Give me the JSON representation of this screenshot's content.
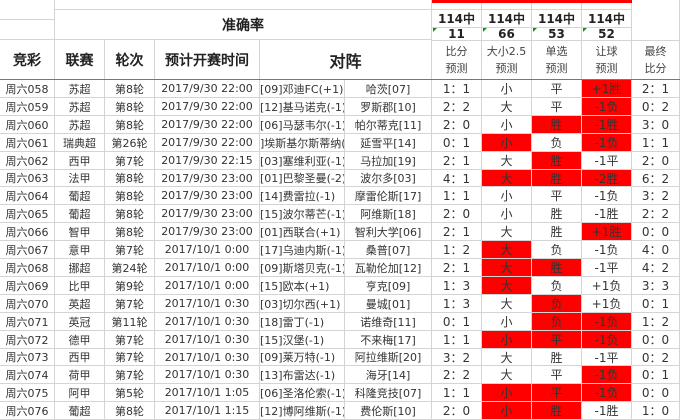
{
  "header": {
    "accuracy_title": "准确率",
    "columns": [
      "竞彩",
      "联赛",
      "轮次",
      "预计开赛时间",
      "对阵"
    ],
    "stats": [
      {
        "top": "114中",
        "value": "11",
        "label1": "比分",
        "label2": "预测"
      },
      {
        "top": "114中",
        "value": "66",
        "label1": "大小2.5",
        "label2": "预测"
      },
      {
        "top": "114中",
        "value": "53",
        "label1": "单选",
        "label2": "预测"
      },
      {
        "top": "114中",
        "value": "52",
        "label1": "让球",
        "label2": "预测"
      }
    ],
    "final_label1": "最终",
    "final_label2": "比分"
  },
  "colors": {
    "hit": "#ff0000",
    "marker": "#1a8a1a"
  },
  "rows": [
    {
      "id": "周六058",
      "league": "苏超",
      "round": "第8轮",
      "time": "2017/9/30 22:00",
      "home": "[09]邓迪FC(+1)",
      "away": "哈茨[07]",
      "score": "1：1",
      "size": "小",
      "pick": "平",
      "hcp": "+1胜",
      "final": "2：1",
      "hit": [
        0,
        0,
        0,
        1
      ]
    },
    {
      "id": "周六059",
      "league": "苏超",
      "round": "第8轮",
      "time": "2017/9/30 22:00",
      "home": "[12]基马诺克(-1)",
      "away": "罗斯郡[10]",
      "score": "2：2",
      "size": "大",
      "pick": "平",
      "hcp": "-1负",
      "final": "0：2",
      "hit": [
        0,
        0,
        0,
        1
      ]
    },
    {
      "id": "周六060",
      "league": "苏超",
      "round": "第8轮",
      "time": "2017/9/30 22:00",
      "home": "[06]马瑟韦尔(-1)",
      "away": "帕尔蒂克[11]",
      "score": "2：0",
      "size": "小",
      "pick": "胜",
      "hcp": "-1胜",
      "final": "3：0",
      "hit": [
        0,
        0,
        1,
        1
      ]
    },
    {
      "id": "周六061",
      "league": "瑞典超",
      "round": "第26轮",
      "time": "2017/9/30 22:00",
      "home": "]埃斯基尔斯蒂纳(",
      "away": "延雪平[14]",
      "score": "0：1",
      "size": "小",
      "pick": "负",
      "hcp": "-1负",
      "final": "1：1",
      "hit": [
        0,
        1,
        0,
        1
      ]
    },
    {
      "id": "周六062",
      "league": "西甲",
      "round": "第7轮",
      "time": "2017/9/30 22:15",
      "home": "[03]塞维利亚(-1)",
      "away": "马拉加[19]",
      "score": "2：1",
      "size": "大",
      "pick": "胜",
      "hcp": "-1平",
      "final": "2：0",
      "hit": [
        0,
        0,
        1,
        0
      ]
    },
    {
      "id": "周六063",
      "league": "法甲",
      "round": "第8轮",
      "time": "2017/9/30 23:00",
      "home": "[01]巴黎圣曼(-2)",
      "away": "波尔多[03]",
      "score": "4：1",
      "size": "大",
      "pick": "胜",
      "hcp": "-2胜",
      "final": "6：2",
      "hit": [
        0,
        1,
        1,
        1
      ]
    },
    {
      "id": "周六064",
      "league": "葡超",
      "round": "第8轮",
      "time": "2017/9/30 23:00",
      "home": "[14]费雷拉(-1)",
      "away": "摩雷伦斯[17]",
      "score": "1：1",
      "size": "小",
      "pick": "平",
      "hcp": "-1负",
      "final": "3：2",
      "hit": [
        0,
        0,
        0,
        0
      ]
    },
    {
      "id": "周六065",
      "league": "葡超",
      "round": "第8轮",
      "time": "2017/9/30 23:00",
      "home": "[15]波尔蒂芒(-1)",
      "away": "阿维斯[18]",
      "score": "2：0",
      "size": "小",
      "pick": "胜",
      "hcp": "-1胜",
      "final": "2：2",
      "hit": [
        0,
        0,
        0,
        0
      ]
    },
    {
      "id": "周六066",
      "league": "智甲",
      "round": "第8轮",
      "time": "2017/9/30 23:00",
      "home": "[01]西联合(+1)",
      "away": "智利大学[06]",
      "score": "2：1",
      "size": "大",
      "pick": "胜",
      "hcp": "+1胜",
      "final": "0：0",
      "hit": [
        0,
        0,
        0,
        1
      ]
    },
    {
      "id": "周六067",
      "league": "意甲",
      "round": "第7轮",
      "time": "2017/10/1 0:00",
      "home": "[17]乌迪内斯(-1)",
      "away": "桑普[07]",
      "score": "1：2",
      "size": "大",
      "pick": "负",
      "hcp": "-1负",
      "final": "4：0",
      "hit": [
        0,
        1,
        0,
        0
      ]
    },
    {
      "id": "周六068",
      "league": "挪超",
      "round": "第24轮",
      "time": "2017/10/1 0:00",
      "home": "[09]斯塔贝克(-1)",
      "away": "瓦勒伦加[12]",
      "score": "2：1",
      "size": "大",
      "pick": "胜",
      "hcp": "-1平",
      "final": "4：2",
      "hit": [
        0,
        1,
        1,
        0
      ]
    },
    {
      "id": "周六069",
      "league": "比甲",
      "round": "第9轮",
      "time": "2017/10/1 0:00",
      "home": "[15]欧本(+1)",
      "away": "亨克[09]",
      "score": "1：3",
      "size": "大",
      "pick": "负",
      "hcp": "+1负",
      "final": "3：3",
      "hit": [
        0,
        1,
        0,
        0
      ]
    },
    {
      "id": "周六070",
      "league": "英超",
      "round": "第7轮",
      "time": "2017/10/1 0:30",
      "home": "[03]切尔西(+1)",
      "away": "曼城[01]",
      "score": "1：3",
      "size": "大",
      "pick": "负",
      "hcp": "+1负",
      "final": "0：1",
      "hit": [
        0,
        0,
        1,
        0
      ]
    },
    {
      "id": "周六071",
      "league": "英冠",
      "round": "第11轮",
      "time": "2017/10/1 0:30",
      "home": "[18]雷丁(-1)",
      "away": "诺维奇[11]",
      "score": "0：1",
      "size": "小",
      "pick": "负",
      "hcp": "-1负",
      "final": "1：2",
      "hit": [
        0,
        0,
        1,
        1
      ]
    },
    {
      "id": "周六072",
      "league": "德甲",
      "round": "第7轮",
      "time": "2017/10/1 0:30",
      "home": "[15]汉堡(-1)",
      "away": "不来梅[17]",
      "score": "1：1",
      "size": "小",
      "pick": "平",
      "hcp": "-1负",
      "final": "0：0",
      "hit": [
        0,
        1,
        1,
        1
      ]
    },
    {
      "id": "周六073",
      "league": "西甲",
      "round": "第7轮",
      "time": "2017/10/1 0:30",
      "home": "[09]莱万特(-1)",
      "away": "阿拉维斯[20]",
      "score": "3：2",
      "size": "大",
      "pick": "胜",
      "hcp": "-1平",
      "final": "0：2",
      "hit": [
        0,
        0,
        0,
        0
      ]
    },
    {
      "id": "周六074",
      "league": "荷甲",
      "round": "第7轮",
      "time": "2017/10/1 0:30",
      "home": "[13]布雷达(-1)",
      "away": "海牙[14]",
      "score": "2：2",
      "size": "大",
      "pick": "平",
      "hcp": "-1负",
      "final": "0：1",
      "hit": [
        0,
        0,
        0,
        1
      ]
    },
    {
      "id": "周六075",
      "league": "阿甲",
      "round": "第5轮",
      "time": "2017/10/1 1:05",
      "home": "[06]圣洛伦索(-1)",
      "away": "科隆竞技[07]",
      "score": "1：1",
      "size": "小",
      "pick": "平",
      "hcp": "-1负",
      "final": "0：0",
      "hit": [
        0,
        1,
        1,
        1
      ]
    },
    {
      "id": "周六076",
      "league": "葡超",
      "round": "第8轮",
      "time": "2017/10/1 1:15",
      "home": "[12]博阿维斯(-1)",
      "away": "费伦斯[10]",
      "score": "2：0",
      "size": "小",
      "pick": "胜",
      "hcp": "-1胜",
      "final": "1：0",
      "hit": [
        0,
        1,
        1,
        0
      ]
    }
  ]
}
